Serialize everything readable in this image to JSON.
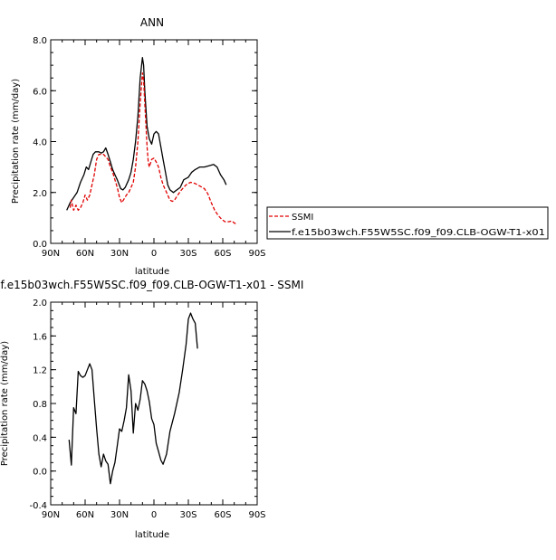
{
  "chart_data": [
    {
      "type": "line",
      "title": "ANN",
      "xlabel": "latitude",
      "ylabel": "Precipitation rate (mm/day)",
      "xlim": [
        -90,
        90
      ],
      "x_reversed": true,
      "ylim": [
        0,
        8
      ],
      "xticks": [
        {
          "v": 90,
          "label": "90N"
        },
        {
          "v": 60,
          "label": "60N"
        },
        {
          "v": 30,
          "label": "30N"
        },
        {
          "v": 0,
          "label": "0"
        },
        {
          "v": -30,
          "label": "30S"
        },
        {
          "v": -60,
          "label": "60S"
        },
        {
          "v": -90,
          "label": "90S"
        }
      ],
      "yticks": [
        {
          "v": 0,
          "label": "0.0"
        },
        {
          "v": 2,
          "label": "2.0"
        },
        {
          "v": 4,
          "label": "4.0"
        },
        {
          "v": 6,
          "label": "6.0"
        },
        {
          "v": 8,
          "label": "8.0"
        }
      ],
      "legend": {
        "placement": "right",
        "entries": [
          {
            "name": "SSMI",
            "color": "#e00000",
            "dash": true
          },
          {
            "name": "f.e15b03wch.F55W5SC.f09_f09.CLB-OGW-T1-x01",
            "color": "#000000",
            "dash": false
          }
        ]
      },
      "series": [
        {
          "name": "f.e15b03wch.F55W5SC.f09_f09.CLB-OGW-T1-x01",
          "color": "#000000",
          "dash": false,
          "points": [
            [
              76,
              1.3
            ],
            [
              73,
              1.6
            ],
            [
              70,
              1.8
            ],
            [
              67,
              2.0
            ],
            [
              64,
              2.4
            ],
            [
              61,
              2.7
            ],
            [
              59,
              3.0
            ],
            [
              57,
              2.9
            ],
            [
              55,
              3.2
            ],
            [
              53,
              3.5
            ],
            [
              51,
              3.6
            ],
            [
              48,
              3.6
            ],
            [
              46,
              3.55
            ],
            [
              44,
              3.6
            ],
            [
              42,
              3.75
            ],
            [
              40,
              3.5
            ],
            [
              38,
              3.2
            ],
            [
              36,
              2.9
            ],
            [
              34,
              2.7
            ],
            [
              32,
              2.5
            ],
            [
              29,
              2.15
            ],
            [
              27,
              2.1
            ],
            [
              25,
              2.2
            ],
            [
              22,
              2.5
            ],
            [
              20,
              2.8
            ],
            [
              18,
              3.3
            ],
            [
              16,
              4.0
            ],
            [
              14,
              5.0
            ],
            [
              12,
              6.5
            ],
            [
              10,
              7.3
            ],
            [
              9,
              7.0
            ],
            [
              8,
              6.0
            ],
            [
              6,
              4.6
            ],
            [
              4,
              4.1
            ],
            [
              2,
              3.9
            ],
            [
              0,
              4.3
            ],
            [
              -2,
              4.4
            ],
            [
              -4,
              4.3
            ],
            [
              -6,
              3.8
            ],
            [
              -8,
              3.3
            ],
            [
              -10,
              2.8
            ],
            [
              -12,
              2.3
            ],
            [
              -14,
              2.1
            ],
            [
              -17,
              2.0
            ],
            [
              -20,
              2.1
            ],
            [
              -23,
              2.2
            ],
            [
              -26,
              2.5
            ],
            [
              -30,
              2.6
            ],
            [
              -33,
              2.8
            ],
            [
              -36,
              2.9
            ],
            [
              -40,
              3.0
            ],
            [
              -44,
              3.0
            ],
            [
              -48,
              3.05
            ],
            [
              -52,
              3.1
            ],
            [
              -55,
              3.0
            ],
            [
              -58,
              2.7
            ],
            [
              -61,
              2.5
            ],
            [
              -63,
              2.3
            ]
          ]
        },
        {
          "name": "SSMI",
          "color": "#e00000",
          "dash": true,
          "points": [
            [
              73,
              1.4
            ],
            [
              72,
              1.7
            ],
            [
              70,
              1.3
            ],
            [
              68,
              1.5
            ],
            [
              66,
              1.3
            ],
            [
              64,
              1.4
            ],
            [
              62,
              1.6
            ],
            [
              60,
              1.9
            ],
            [
              58,
              1.7
            ],
            [
              56,
              1.9
            ],
            [
              54,
              2.3
            ],
            [
              52,
              2.7
            ],
            [
              50,
              3.3
            ],
            [
              48,
              3.5
            ],
            [
              46,
              3.5
            ],
            [
              44,
              3.5
            ],
            [
              42,
              3.4
            ],
            [
              40,
              3.3
            ],
            [
              38,
              3.0
            ],
            [
              36,
              2.8
            ],
            [
              34,
              2.5
            ],
            [
              32,
              2.2
            ],
            [
              30,
              1.8
            ],
            [
              28,
              1.6
            ],
            [
              26,
              1.75
            ],
            [
              24,
              1.9
            ],
            [
              22,
              2.0
            ],
            [
              20,
              2.2
            ],
            [
              18,
              2.4
            ],
            [
              16,
              3.0
            ],
            [
              14,
              4.0
            ],
            [
              12,
              5.5
            ],
            [
              10,
              6.7
            ],
            [
              9,
              6.4
            ],
            [
              8,
              5.5
            ],
            [
              6,
              3.8
            ],
            [
              5,
              3.2
            ],
            [
              4,
              3.0
            ],
            [
              2,
              3.3
            ],
            [
              0,
              3.35
            ],
            [
              -2,
              3.2
            ],
            [
              -4,
              3.0
            ],
            [
              -6,
              2.6
            ],
            [
              -8,
              2.3
            ],
            [
              -10,
              2.1
            ],
            [
              -12,
              1.9
            ],
            [
              -14,
              1.7
            ],
            [
              -16,
              1.65
            ],
            [
              -18,
              1.7
            ],
            [
              -20,
              1.85
            ],
            [
              -24,
              2.1
            ],
            [
              -28,
              2.3
            ],
            [
              -32,
              2.4
            ],
            [
              -36,
              2.35
            ],
            [
              -40,
              2.25
            ],
            [
              -44,
              2.15
            ],
            [
              -47,
              1.95
            ],
            [
              -50,
              1.6
            ],
            [
              -53,
              1.3
            ],
            [
              -56,
              1.1
            ],
            [
              -59,
              0.95
            ],
            [
              -62,
              0.85
            ],
            [
              -65,
              0.85
            ],
            [
              -68,
              0.88
            ],
            [
              -70,
              0.8
            ],
            [
              -72,
              0.75
            ]
          ]
        }
      ]
    },
    {
      "type": "line",
      "title": "f.e15b03wch.F55W5SC.f09_f09.CLB-OGW-T1-x01 - SSMI",
      "xlabel": "latitude",
      "ylabel": "Precipitation rate (mm/day)",
      "xlim": [
        -90,
        90
      ],
      "x_reversed": true,
      "ylim": [
        -0.4,
        2.0
      ],
      "xticks": [
        {
          "v": 90,
          "label": "90N"
        },
        {
          "v": 60,
          "label": "60N"
        },
        {
          "v": 30,
          "label": "30N"
        },
        {
          "v": 0,
          "label": "0"
        },
        {
          "v": -30,
          "label": "30S"
        },
        {
          "v": -60,
          "label": "60S"
        },
        {
          "v": -90,
          "label": "90S"
        }
      ],
      "yticks": [
        {
          "v": -0.4,
          "label": "-0.4"
        },
        {
          "v": 0,
          "label": "0.0"
        },
        {
          "v": 0.4,
          "label": "0.4"
        },
        {
          "v": 0.8,
          "label": "0.8"
        },
        {
          "v": 1.2,
          "label": "1.2"
        },
        {
          "v": 1.6,
          "label": "1.6"
        },
        {
          "v": 2.0,
          "label": "2.0"
        }
      ],
      "series": [
        {
          "name": "",
          "color": "#000000",
          "dash": false,
          "points": [
            [
              74,
              0.37
            ],
            [
              72,
              0.07
            ],
            [
              70,
              0.75
            ],
            [
              68,
              0.68
            ],
            [
              66,
              1.18
            ],
            [
              64,
              1.13
            ],
            [
              62,
              1.11
            ],
            [
              60,
              1.13
            ],
            [
              58,
              1.2
            ],
            [
              56,
              1.27
            ],
            [
              54,
              1.2
            ],
            [
              52,
              0.85
            ],
            [
              50,
              0.5
            ],
            [
              48,
              0.2
            ],
            [
              46,
              0.05
            ],
            [
              44,
              0.2
            ],
            [
              42,
              0.12
            ],
            [
              40,
              0.08
            ],
            [
              38,
              -0.15
            ],
            [
              36,
              0.0
            ],
            [
              34,
              0.1
            ],
            [
              32,
              0.3
            ],
            [
              30,
              0.5
            ],
            [
              28,
              0.47
            ],
            [
              26,
              0.6
            ],
            [
              24,
              0.75
            ],
            [
              22,
              1.14
            ],
            [
              20,
              0.95
            ],
            [
              18,
              0.45
            ],
            [
              16,
              0.8
            ],
            [
              14,
              0.72
            ],
            [
              12,
              0.85
            ],
            [
              10,
              1.07
            ],
            [
              8,
              1.03
            ],
            [
              6,
              0.95
            ],
            [
              4,
              0.82
            ],
            [
              2,
              0.62
            ],
            [
              0,
              0.55
            ],
            [
              -2,
              0.33
            ],
            [
              -4,
              0.23
            ],
            [
              -6,
              0.13
            ],
            [
              -8,
              0.08
            ],
            [
              -11,
              0.2
            ],
            [
              -14,
              0.47
            ],
            [
              -18,
              0.68
            ],
            [
              -22,
              0.93
            ],
            [
              -25,
              1.2
            ],
            [
              -28,
              1.5
            ],
            [
              -30,
              1.8
            ],
            [
              -32,
              1.87
            ],
            [
              -34,
              1.8
            ],
            [
              -36,
              1.75
            ],
            [
              -38,
              1.45
            ]
          ]
        }
      ]
    }
  ]
}
